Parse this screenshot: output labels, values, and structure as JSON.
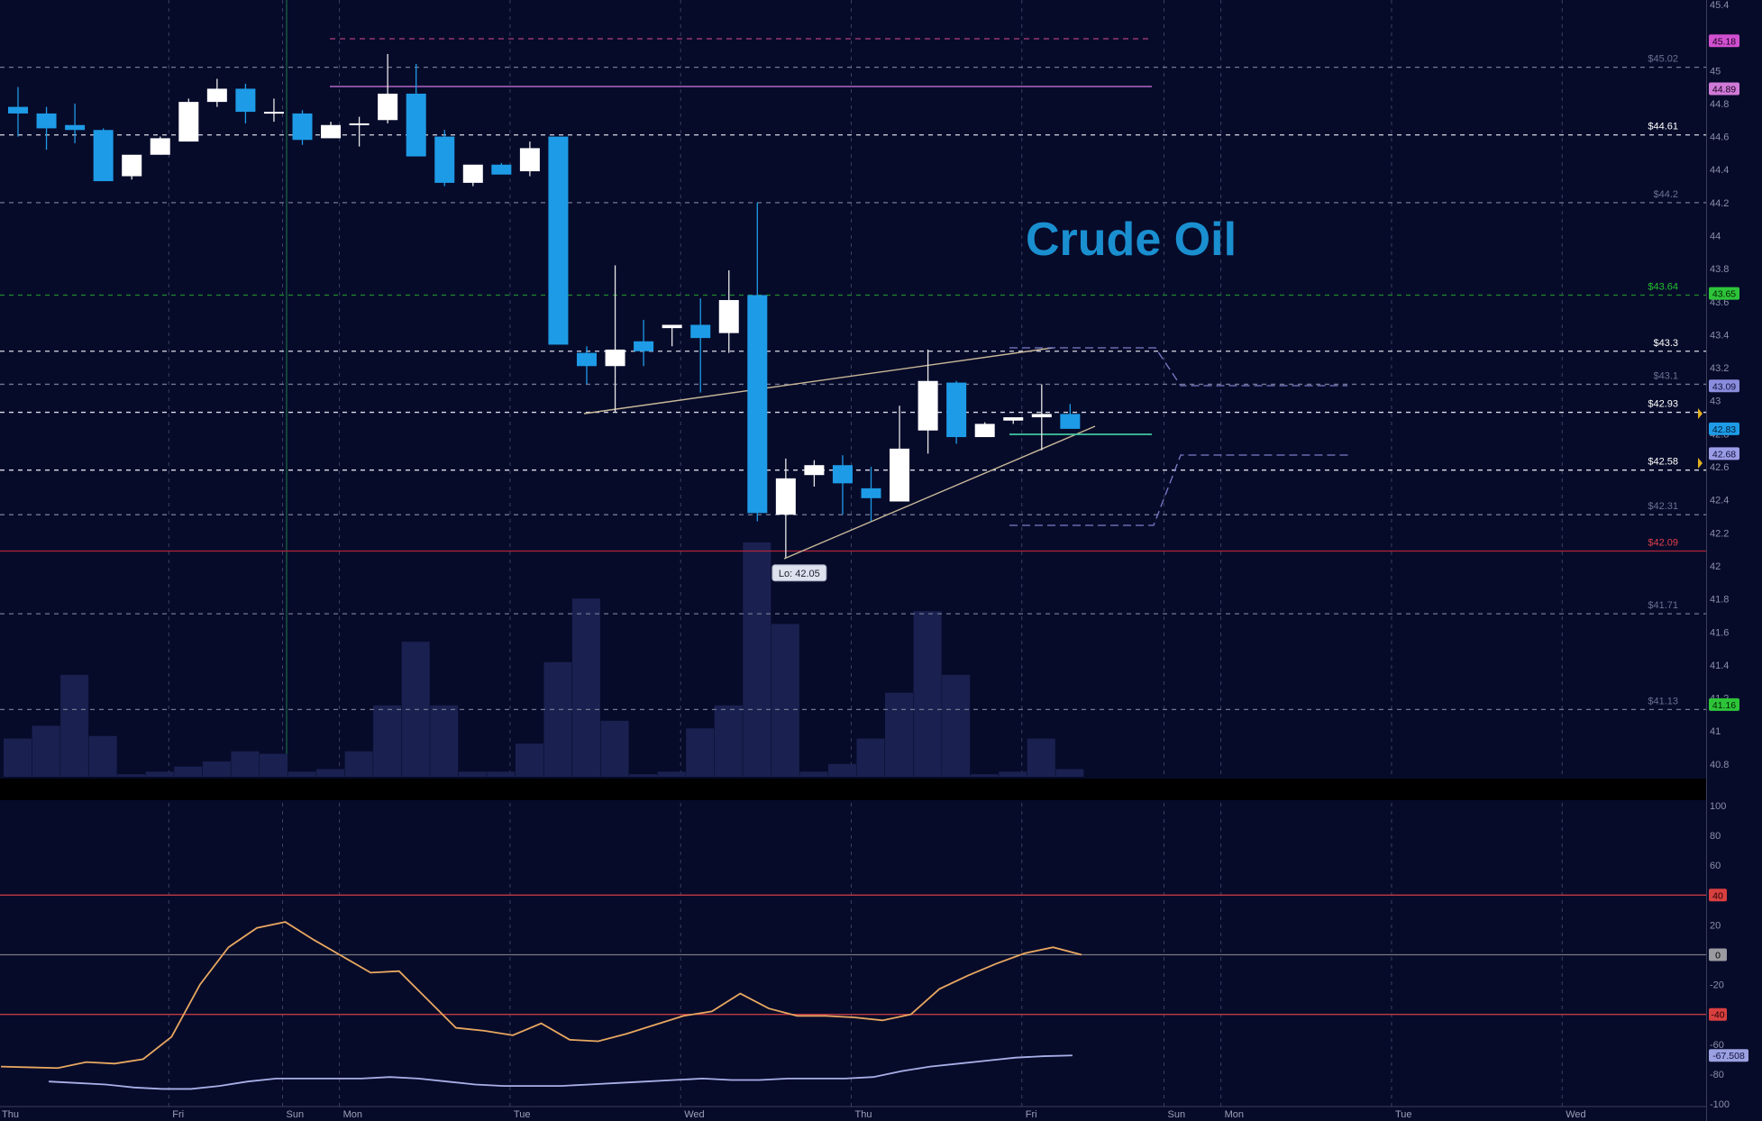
{
  "chart_data": {
    "type": "candlestick",
    "title": "Crude Oil",
    "price_axis": {
      "range": [
        40.75,
        45.4
      ],
      "ticks": [
        "45.4",
        "45",
        "44.8",
        "44.6",
        "44.4",
        "44.2",
        "44",
        "43.8",
        "43.6",
        "43.4",
        "43.2",
        "43",
        "42.8",
        "42.6",
        "42.4",
        "42.2",
        "42",
        "41.8",
        "41.6",
        "41.4",
        "41.2",
        "41",
        "40.8"
      ]
    },
    "time_axis": {
      "labels": [
        {
          "label": "Thu",
          "slot": 0
        },
        {
          "label": "Fri",
          "slot": 6
        },
        {
          "label": "Sun",
          "slot": 10
        },
        {
          "label": "Mon",
          "slot": 12
        },
        {
          "label": "Tue",
          "slot": 18
        },
        {
          "label": "Wed",
          "slot": 24
        },
        {
          "label": "Thu",
          "slot": 30
        },
        {
          "label": "Fri",
          "slot": 36
        },
        {
          "label": "Sun",
          "slot": 41
        },
        {
          "label": "Mon",
          "slot": 43
        },
        {
          "label": "Tue",
          "slot": 49
        },
        {
          "label": "Wed",
          "slot": 55
        }
      ]
    },
    "candles": [
      {
        "o": 44.78,
        "h": 44.9,
        "l": 44.6,
        "c": 44.74
      },
      {
        "o": 44.74,
        "h": 44.78,
        "l": 44.52,
        "c": 44.65
      },
      {
        "o": 44.67,
        "h": 44.8,
        "l": 44.56,
        "c": 44.64
      },
      {
        "o": 44.64,
        "h": 44.65,
        "l": 44.33,
        "c": 44.33
      },
      {
        "o": 44.36,
        "h": 44.47,
        "l": 44.34,
        "c": 44.49
      },
      {
        "o": 44.49,
        "h": 44.6,
        "l": 44.49,
        "c": 44.59
      },
      {
        "o": 44.57,
        "h": 44.83,
        "l": 44.57,
        "c": 44.81
      },
      {
        "o": 44.81,
        "h": 44.95,
        "l": 44.78,
        "c": 44.89
      },
      {
        "o": 44.89,
        "h": 44.92,
        "l": 44.68,
        "c": 44.75
      },
      {
        "o": 44.75,
        "h": 44.83,
        "l": 44.69,
        "c": 44.75
      },
      {
        "o": 44.74,
        "h": 44.76,
        "l": 44.55,
        "c": 44.58
      },
      {
        "o": 44.59,
        "h": 44.69,
        "l": 44.59,
        "c": 44.67
      },
      {
        "o": 44.68,
        "h": 44.72,
        "l": 44.54,
        "c": 44.68
      },
      {
        "o": 44.7,
        "h": 45.1,
        "l": 44.68,
        "c": 44.86
      },
      {
        "o": 44.86,
        "h": 45.04,
        "l": 44.48,
        "c": 44.48
      },
      {
        "o": 44.6,
        "h": 44.64,
        "l": 44.3,
        "c": 44.32
      },
      {
        "o": 44.32,
        "h": 44.41,
        "l": 44.3,
        "c": 44.43
      },
      {
        "o": 44.43,
        "h": 44.44,
        "l": 44.38,
        "c": 44.37
      },
      {
        "o": 44.39,
        "h": 44.57,
        "l": 44.36,
        "c": 44.53
      },
      {
        "o": 44.6,
        "h": 44.6,
        "l": 43.34,
        "c": 43.34
      },
      {
        "o": 43.29,
        "h": 43.33,
        "l": 43.1,
        "c": 43.21
      },
      {
        "o": 43.21,
        "h": 43.82,
        "l": 42.93,
        "c": 43.31
      },
      {
        "o": 43.36,
        "h": 43.49,
        "l": 43.21,
        "c": 43.3
      },
      {
        "o": 43.44,
        "h": 43.46,
        "l": 43.33,
        "c": 43.46
      },
      {
        "o": 43.46,
        "h": 43.62,
        "l": 43.05,
        "c": 43.38
      },
      {
        "o": 43.41,
        "h": 43.79,
        "l": 43.29,
        "c": 43.61
      },
      {
        "o": 43.64,
        "h": 44.2,
        "l": 42.27,
        "c": 42.32
      },
      {
        "o": 42.31,
        "h": 42.65,
        "l": 42.05,
        "c": 42.53
      },
      {
        "o": 42.55,
        "h": 42.64,
        "l": 42.48,
        "c": 42.61
      },
      {
        "o": 42.61,
        "h": 42.67,
        "l": 42.31,
        "c": 42.5
      },
      {
        "o": 42.47,
        "h": 42.6,
        "l": 42.27,
        "c": 42.41
      },
      {
        "o": 42.39,
        "h": 42.97,
        "l": 42.39,
        "c": 42.71
      },
      {
        "o": 42.82,
        "h": 43.31,
        "l": 42.68,
        "c": 43.12
      },
      {
        "o": 43.11,
        "h": 43.12,
        "l": 42.74,
        "c": 42.78
      },
      {
        "o": 42.78,
        "h": 42.87,
        "l": 42.78,
        "c": 42.86
      },
      {
        "o": 42.88,
        "h": 42.89,
        "l": 42.86,
        "c": 42.9
      },
      {
        "o": 42.9,
        "h": 43.1,
        "l": 42.7,
        "c": 42.92
      },
      {
        "o": 42.92,
        "h": 42.98,
        "l": 42.83,
        "c": 42.83
      }
    ],
    "volume": [
      15,
      20,
      40,
      16,
      1,
      2,
      4,
      6,
      10,
      9,
      2,
      3,
      10,
      28,
      53,
      28,
      2,
      2,
      13,
      45,
      70,
      22,
      1,
      2,
      19,
      28,
      92,
      60,
      2,
      5,
      15,
      33,
      65,
      40,
      1,
      2,
      15,
      3
    ],
    "levels": [
      {
        "label": "$45.02",
        "value": 45.02,
        "style": "dash",
        "line": "#707892",
        "text": "#6a7190"
      },
      {
        "label": "$44.61",
        "value": 44.61,
        "style": "dash",
        "line": "#d8dce8",
        "text": "#ffffff"
      },
      {
        "label": "$44.2",
        "value": 44.2,
        "style": "dash",
        "line": "#707892",
        "text": "#6a7190"
      },
      {
        "label": "$43.64",
        "value": 43.64,
        "style": "dash",
        "line": "#1f8a2a",
        "text": "#22c02e"
      },
      {
        "label": "$43.3",
        "value": 43.3,
        "style": "dash",
        "line": "#d8dce8",
        "text": "#ffffff"
      },
      {
        "label": "$43.1",
        "value": 43.1,
        "style": "dash",
        "line": "#707892",
        "text": "#6a7190"
      },
      {
        "label": "$42.93",
        "value": 42.93,
        "style": "dash",
        "line": "#d8dce8",
        "text": "#ffffff"
      },
      {
        "label": "$42.58",
        "value": 42.58,
        "style": "dash",
        "line": "#d8dce8",
        "text": "#ffffff"
      },
      {
        "label": "$42.31",
        "value": 42.31,
        "style": "dash",
        "line": "#707892",
        "text": "#6a7190"
      },
      {
        "label": "$42.09",
        "value": 42.09,
        "style": "solid",
        "line": "#b0263a",
        "text": "#e0404a"
      },
      {
        "label": "$41.71",
        "value": 41.71,
        "style": "dash",
        "line": "#707892",
        "text": "#6a7190"
      },
      {
        "label": "$41.13",
        "value": 41.13,
        "style": "dash",
        "line": "#707892",
        "text": "#6a7190"
      }
    ],
    "price_tags": [
      {
        "label": "45.18",
        "value": 45.18,
        "bg": "#d050d0",
        "fg": "#1a0020"
      },
      {
        "label": "44.89",
        "value": 44.89,
        "bg": "#d07ad8",
        "fg": "#1a0020"
      },
      {
        "label": "43.65",
        "value": 43.65,
        "bg": "#2ec43a",
        "fg": "#002000"
      },
      {
        "label": "43.09",
        "value": 43.09,
        "bg": "#8a8cdc",
        "fg": "#10103a"
      },
      {
        "label": "42.83",
        "value": 42.83,
        "bg": "#1e9be6",
        "fg": "#001a30"
      },
      {
        "label": "42.68",
        "value": 42.68,
        "bg": "#9a9ce6",
        "fg": "#10103a"
      },
      {
        "label": "41.16",
        "value": 41.16,
        "bg": "#2ec43a",
        "fg": "#002000"
      }
    ],
    "annotations": [
      {
        "text": "Lo: 42.05",
        "slot": 27,
        "value": 42.05
      }
    ],
    "oscillator": {
      "range": [
        -100,
        100
      ],
      "ticks": [
        "100",
        "80",
        "60",
        "40",
        "20",
        "0",
        "-20",
        "-40",
        "-60",
        "-80",
        "-100"
      ],
      "bands": [
        40,
        0,
        -40
      ],
      "tags": [
        {
          "label": "40",
          "value": 40,
          "bg": "#d84040",
          "fg": "#200000"
        },
        {
          "label": "0",
          "value": 0,
          "bg": "#9a9aa0",
          "fg": "#000000"
        },
        {
          "label": "-40",
          "value": -40,
          "bg": "#d84040",
          "fg": "#200000"
        },
        {
          "label": "-67.508",
          "value": -67.508,
          "bg": "#9aa0e0",
          "fg": "#101040"
        }
      ],
      "fast": [
        -75,
        -75.5,
        -76,
        -72,
        -73,
        -70,
        -55,
        -20,
        5,
        18,
        22,
        10,
        -1,
        -12,
        -11,
        -30,
        -49,
        -51,
        -54,
        -46,
        -57,
        -58,
        -53,
        -47,
        -41,
        -38,
        -26,
        -36,
        -41,
        -41,
        -42,
        -44,
        -40,
        -23,
        -14,
        -6,
        1,
        5,
        0
      ],
      "slow": [
        -85,
        -86,
        -87,
        -89,
        -90,
        -90,
        -88,
        -85,
        -83,
        -83,
        -83,
        -83,
        -82,
        -83,
        -85,
        -87,
        -88,
        -88,
        -88,
        -87,
        -86,
        -85,
        -84,
        -83,
        -84,
        -84,
        -83,
        -83,
        -83,
        -82,
        -78,
        -75,
        -73,
        -71,
        -69,
        -68,
        -67.5
      ]
    }
  }
}
